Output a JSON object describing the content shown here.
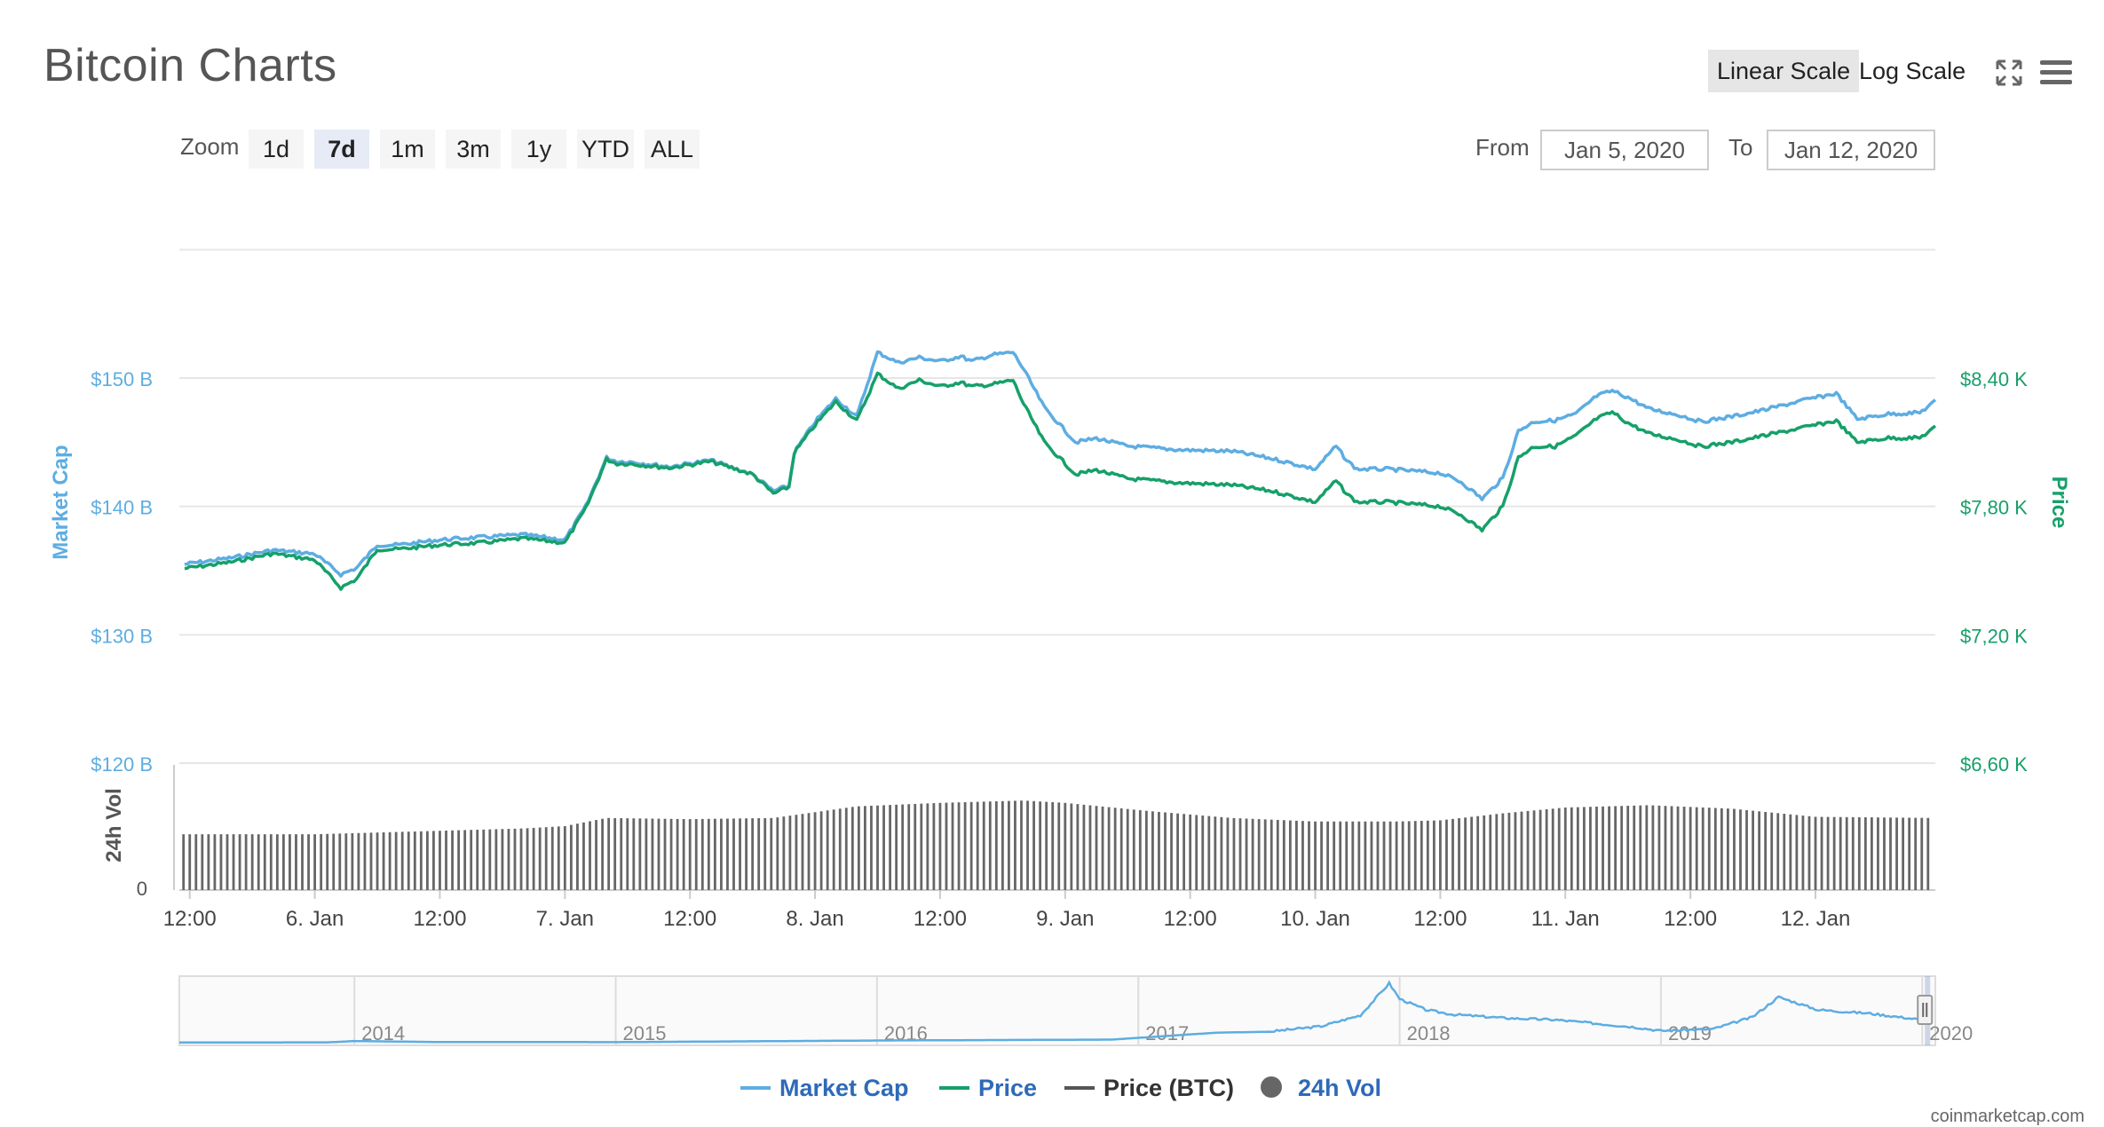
{
  "header": {
    "title": "Bitcoin Charts",
    "scale_buttons": [
      {
        "label": "Linear Scale",
        "active": true
      },
      {
        "label": "Log Scale",
        "active": false
      }
    ],
    "fullscreen_icon": "expand-icon",
    "menu_icon": "hamburger-menu-icon"
  },
  "zoom": {
    "label": "Zoom",
    "buttons": [
      {
        "label": "1d",
        "active": false
      },
      {
        "label": "7d",
        "active": true
      },
      {
        "label": "1m",
        "active": false
      },
      {
        "label": "3m",
        "active": false
      },
      {
        "label": "1y",
        "active": false
      },
      {
        "label": "YTD",
        "active": false
      },
      {
        "label": "ALL",
        "active": false
      }
    ]
  },
  "range": {
    "from_label": "From",
    "from_value": "Jan 5, 2020",
    "to_label": "To",
    "to_value": "Jan 12, 2020"
  },
  "colors": {
    "market_cap": "#5dade2",
    "price": "#16a06a",
    "price_btc": "#555555",
    "volume": "#666666",
    "grid": "#e6e6e6"
  },
  "chart_data": {
    "type": "line",
    "title": "",
    "left_axis": {
      "label": "Market Cap",
      "ticks": [
        "$150 B",
        "$140 B",
        "$130 B",
        "$120 B"
      ],
      "tick_values": [
        150,
        140,
        130,
        120
      ],
      "range": [
        120,
        160
      ]
    },
    "right_axis": {
      "label": "Price",
      "ticks": [
        "$8,40 K",
        "$7,80 K",
        "$7,20 K",
        "$6,60 K"
      ],
      "tick_values": [
        8.4,
        7.8,
        7.2,
        6.6
      ],
      "range": [
        6.6,
        9.0
      ]
    },
    "volume_axis": {
      "label": "24h Vol",
      "ticks": [
        "0"
      ]
    },
    "x_axis": {
      "ticks": [
        "12:00",
        "6. Jan",
        "12:00",
        "7. Jan",
        "12:00",
        "8. Jan",
        "12:00",
        "9. Jan",
        "12:00",
        "10. Jan",
        "12:00",
        "11. Jan",
        "12:00",
        "12. Jan"
      ],
      "tick_hours": [
        0,
        12,
        24,
        36,
        48,
        60,
        72,
        84,
        96,
        108,
        120,
        132,
        144,
        156
      ],
      "range_hours": [
        -1,
        167.5
      ]
    },
    "series": [
      {
        "name": "Market Cap",
        "unit": "B USD",
        "x": [
          -0.5,
          4,
          8,
          12,
          14.5,
          16,
          18,
          20,
          24,
          28,
          32,
          36,
          38,
          40,
          41,
          42,
          46,
          50,
          54,
          56,
          57.5,
          58,
          60,
          62,
          64,
          66,
          68,
          70,
          72,
          74,
          75,
          77,
          79,
          80,
          82,
          85,
          87,
          90,
          95,
          100,
          104,
          108,
          110,
          111,
          112,
          115,
          120,
          122,
          124,
          126,
          127.5,
          129,
          131,
          133,
          135,
          136.5,
          138,
          140,
          143,
          145,
          148,
          151,
          155,
          158,
          160,
          163,
          166,
          167.5
        ],
        "values": [
          135.5,
          136.0,
          136.6,
          136.3,
          134.7,
          135.2,
          137.0,
          137.0,
          137.4,
          137.6,
          137.8,
          137.4,
          140.0,
          143.8,
          143.5,
          143.5,
          143.1,
          143.6,
          142.5,
          141.2,
          141.6,
          144.2,
          146.6,
          148.4,
          147.0,
          152.0,
          151.2,
          151.6,
          151.3,
          151.7,
          151.3,
          151.8,
          152.0,
          150.7,
          147.7,
          145.0,
          145.3,
          144.7,
          144.4,
          144.3,
          143.7,
          142.9,
          144.7,
          143.6,
          142.9,
          142.9,
          142.6,
          141.9,
          140.6,
          142.2,
          145.9,
          146.6,
          146.7,
          147.2,
          148.6,
          149.0,
          148.5,
          147.6,
          147.1,
          146.6,
          147.0,
          147.5,
          148.3,
          148.8,
          146.8,
          147.2,
          147.3,
          148.2
        ]
      },
      {
        "name": "Price",
        "unit": "K USD",
        "x": [
          -0.5,
          4,
          8,
          12,
          14.5,
          16,
          18,
          20,
          24,
          28,
          32,
          36,
          38,
          40,
          41,
          42,
          46,
          50,
          54,
          56,
          57.5,
          58,
          60,
          62,
          64,
          66,
          68,
          70,
          72,
          74,
          75,
          77,
          79,
          80,
          82,
          85,
          87,
          90,
          95,
          100,
          104,
          108,
          110,
          111,
          112,
          115,
          120,
          122,
          124,
          126,
          127.5,
          129,
          131,
          133,
          135,
          136.5,
          138,
          140,
          143,
          145,
          148,
          151,
          155,
          158,
          160,
          163,
          166,
          167.5
        ],
        "values": [
          7.51,
          7.54,
          7.58,
          7.55,
          7.42,
          7.46,
          7.6,
          7.6,
          7.62,
          7.63,
          7.65,
          7.63,
          7.79,
          8.02,
          8.0,
          8.0,
          7.98,
          8.01,
          7.95,
          7.86,
          7.89,
          8.05,
          8.18,
          8.29,
          8.2,
          8.42,
          8.35,
          8.39,
          8.36,
          8.38,
          8.36,
          8.37,
          8.39,
          8.28,
          8.1,
          7.95,
          7.97,
          7.93,
          7.91,
          7.9,
          7.87,
          7.82,
          7.92,
          7.86,
          7.82,
          7.82,
          7.8,
          7.76,
          7.69,
          7.8,
          8.03,
          8.08,
          8.08,
          8.13,
          8.21,
          8.24,
          8.19,
          8.14,
          8.11,
          8.08,
          8.1,
          8.13,
          8.17,
          8.2,
          8.1,
          8.12,
          8.12,
          8.17
        ]
      }
    ],
    "volume": {
      "name": "24h Vol",
      "x": [
        -0.5,
        12,
        16,
        24,
        32,
        36,
        40,
        48,
        56,
        64,
        72,
        80,
        84,
        92,
        100,
        108,
        116,
        120,
        126,
        132,
        140,
        148,
        156,
        167.5
      ],
      "values": [
        0.48,
        0.48,
        0.49,
        0.51,
        0.53,
        0.55,
        0.62,
        0.61,
        0.62,
        0.72,
        0.75,
        0.77,
        0.75,
        0.68,
        0.62,
        0.59,
        0.59,
        0.6,
        0.66,
        0.71,
        0.73,
        0.7,
        0.63,
        0.62
      ]
    },
    "navigator": {
      "x_ticks": [
        "2014",
        "2015",
        "2016",
        "2017",
        "2018",
        "2019",
        "2020"
      ],
      "tick_years": [
        2014,
        2015,
        2016,
        2017,
        2018,
        2019,
        2020
      ],
      "range_years": [
        2013.33,
        2020.05
      ],
      "x": [
        2013.33,
        2013.9,
        2014.0,
        2014.3,
        2015.0,
        2016.0,
        2016.9,
        2017.3,
        2017.5,
        2017.7,
        2017.85,
        2017.96,
        2018.0,
        2018.1,
        2018.2,
        2018.4,
        2018.6,
        2018.9,
        2019.0,
        2019.2,
        2019.35,
        2019.45,
        2019.6,
        2019.8,
        2020.0
      ],
      "values": [
        0.01,
        0.02,
        0.09,
        0.04,
        0.03,
        0.12,
        0.17,
        0.55,
        0.6,
        0.9,
        1.5,
        3.25,
        2.4,
        1.8,
        1.55,
        1.35,
        1.25,
        0.85,
        0.65,
        0.75,
        1.4,
        2.5,
        1.8,
        1.6,
        1.25
      ],
      "selected_range": [
        2020.01,
        2020.03
      ]
    }
  },
  "legend": [
    {
      "name": "Market Cap",
      "color": "#5dade2",
      "marker": "line"
    },
    {
      "name": "Price",
      "color": "#16a06a",
      "marker": "line"
    },
    {
      "name": "Price (BTC)",
      "color": "#555555",
      "marker": "line"
    },
    {
      "name": "24h Vol",
      "color": "#666666",
      "marker": "circle"
    }
  ],
  "footer": {
    "credit": "coinmarketcap.com"
  }
}
